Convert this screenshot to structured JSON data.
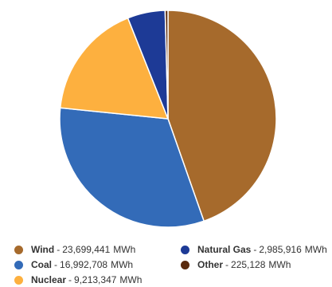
{
  "chart_data": {
    "type": "pie",
    "unit": "MWh",
    "slices": [
      {
        "name": "Wind",
        "value_label": "23,699,441",
        "value": 23699441,
        "color": "#A66A2C"
      },
      {
        "name": "Coal",
        "value_label": "16,992,708",
        "value": 16992708,
        "color": "#336BB8"
      },
      {
        "name": "Nuclear",
        "value_label": "9,213,347",
        "value": 9213347,
        "color": "#FDB03F"
      },
      {
        "name": "Natural Gas",
        "value_label": "2,985,916",
        "value": 2985916,
        "color": "#1D3A96"
      },
      {
        "name": "Other",
        "value_label": "225,128",
        "value": 225128,
        "color": "#5A2A0E"
      }
    ]
  }
}
